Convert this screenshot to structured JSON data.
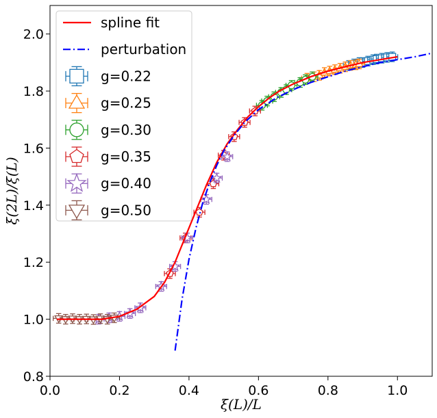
{
  "chart_data": {
    "type": "scatter",
    "title": "",
    "xlabel": "ξ(L)/L",
    "ylabel": "ξ(2L)/ξ(L)",
    "xlim": [
      0.0,
      1.1
    ],
    "ylim": [
      0.8,
      2.1
    ],
    "xticks": [
      "0.0",
      "0.2",
      "0.4",
      "0.6",
      "0.8",
      "1.0"
    ],
    "yticks": [
      "0.8",
      "1.0",
      "1.2",
      "1.4",
      "1.6",
      "1.8",
      "2.0"
    ],
    "grid": false,
    "legend_position": "top-left",
    "lines": [
      {
        "name": "spline fit",
        "color": "#ff0000",
        "style": "solid",
        "x": [
          0.02,
          0.1,
          0.15,
          0.2,
          0.25,
          0.3,
          0.33,
          0.36,
          0.39,
          0.42,
          0.45,
          0.48,
          0.51,
          0.54,
          0.57,
          0.6,
          0.63,
          0.66,
          0.7,
          0.75,
          0.8,
          0.85,
          0.9,
          0.95,
          1.0
        ],
        "y": [
          1.0,
          1.0,
          1.0,
          1.01,
          1.035,
          1.08,
          1.13,
          1.2,
          1.29,
          1.38,
          1.47,
          1.55,
          1.615,
          1.665,
          1.71,
          1.745,
          1.775,
          1.8,
          1.825,
          1.85,
          1.87,
          1.885,
          1.9,
          1.91,
          1.92
        ]
      },
      {
        "name": "perturbation",
        "color": "#0000ff",
        "style": "dashdot",
        "x": [
          0.36,
          0.38,
          0.4,
          0.42,
          0.44,
          0.46,
          0.48,
          0.5,
          0.53,
          0.56,
          0.6,
          0.65,
          0.7,
          0.75,
          0.8,
          0.85,
          0.9,
          0.95,
          1.0,
          1.05,
          1.1
        ],
        "y": [
          0.89,
          1.07,
          1.21,
          1.32,
          1.41,
          1.48,
          1.54,
          1.59,
          1.645,
          1.69,
          1.735,
          1.775,
          1.805,
          1.83,
          1.85,
          1.87,
          1.885,
          1.9,
          1.91,
          1.92,
          1.933
        ]
      }
    ],
    "series": [
      {
        "name": "g=0.22",
        "color": "#1f77b4",
        "marker": "square",
        "x": [
          0.86,
          0.875,
          0.89,
          0.9,
          0.915,
          0.93,
          0.94,
          0.955,
          0.97,
          0.985
        ],
        "y": [
          1.89,
          1.895,
          1.9,
          1.9,
          1.905,
          1.91,
          1.912,
          1.915,
          1.918,
          1.92
        ]
      },
      {
        "name": "g=0.25",
        "color": "#ff7f0e",
        "marker": "triangle-up",
        "x": [
          0.74,
          0.76,
          0.775,
          0.79,
          0.805,
          0.82,
          0.835,
          0.85,
          0.865,
          0.88,
          0.89
        ],
        "y": [
          1.845,
          1.85,
          1.855,
          1.865,
          1.87,
          1.875,
          1.88,
          1.885,
          1.89,
          1.892,
          1.895
        ]
      },
      {
        "name": "g=0.30",
        "color": "#2ca02c",
        "marker": "circle",
        "x": [
          0.61,
          0.625,
          0.645,
          0.665,
          0.68,
          0.695,
          0.72,
          0.735,
          0.755
        ],
        "y": [
          1.75,
          1.765,
          1.78,
          1.795,
          1.805,
          1.82,
          1.83,
          1.84,
          1.85
        ]
      },
      {
        "name": "g=0.35",
        "color": "#d62728",
        "marker": "pentagon",
        "x": [
          0.345,
          0.39,
          0.43,
          0.47,
          0.5,
          0.53,
          0.56,
          0.59
        ],
        "y": [
          1.16,
          1.285,
          1.375,
          1.475,
          1.575,
          1.64,
          1.69,
          1.73
        ]
      },
      {
        "name": "g=0.40",
        "color": "#9467bd",
        "marker": "star",
        "x": [
          0.14,
          0.17,
          0.2,
          0.23,
          0.26,
          0.32,
          0.36,
          0.395,
          0.45,
          0.48,
          0.51
        ],
        "y": [
          1.0,
          1.005,
          1.01,
          1.02,
          1.04,
          1.115,
          1.185,
          1.285,
          1.42,
          1.495,
          1.57
        ]
      },
      {
        "name": "g=0.50",
        "color": "#8c564b",
        "marker": "triangle-down",
        "x": [
          0.025,
          0.045,
          0.065,
          0.085,
          0.105,
          0.125,
          0.145,
          0.165,
          0.185
        ],
        "y": [
          1.003,
          1.0,
          1.002,
          1.0,
          1.001,
          0.999,
          1.002,
          1.0,
          1.005
        ]
      }
    ]
  }
}
